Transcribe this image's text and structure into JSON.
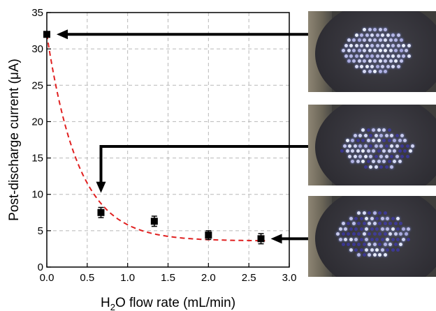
{
  "chart_data": {
    "type": "scatter",
    "xlabel": "H2O flow rate (mL/min)",
    "ylabel": "Post-discharge current (μA)",
    "xlim": [
      0.0,
      3.0
    ],
    "ylim": [
      0,
      35
    ],
    "xticks": [
      "0.0",
      "0.5",
      "1.0",
      "1.5",
      "2.0",
      "2.5",
      "3.0"
    ],
    "yticks": [
      "0",
      "5",
      "10",
      "15",
      "20",
      "25",
      "30",
      "35"
    ],
    "grid": true,
    "series": [
      {
        "marker": "square",
        "color": "#000000",
        "points": [
          {
            "x": 0.0,
            "y": 32.0,
            "err": 0.0
          },
          {
            "x": 0.67,
            "y": 7.5,
            "err": 0.7
          },
          {
            "x": 1.33,
            "y": 6.3,
            "err": 0.7
          },
          {
            "x": 2.0,
            "y": 4.4,
            "err": 0.6
          },
          {
            "x": 2.65,
            "y": 3.9,
            "err": 0.7
          }
        ]
      }
    ],
    "fit": {
      "style": "dashed",
      "color": "#e02020",
      "model": "exponential decay",
      "y0": 3.6,
      "amplitude": 28.4,
      "decay": 2.55,
      "x_range": [
        0.0,
        2.7
      ]
    },
    "annotations": [
      {
        "kind": "arrow",
        "from": "top-photo",
        "to_point": {
          "x": 0.0,
          "y": 32.0
        }
      },
      {
        "kind": "elbow-arrow",
        "from": "middle-photo",
        "to_point": {
          "x": 0.67,
          "y": 10.2
        }
      },
      {
        "kind": "arrow",
        "from": "bottom-photo",
        "to_point": {
          "x": 2.65,
          "y": 3.9
        }
      }
    ],
    "insets": [
      {
        "name": "top-photo",
        "glow_level": 1.0
      },
      {
        "name": "middle-photo",
        "glow_level": 0.6
      },
      {
        "name": "bottom-photo",
        "glow_level": 0.4
      }
    ]
  }
}
